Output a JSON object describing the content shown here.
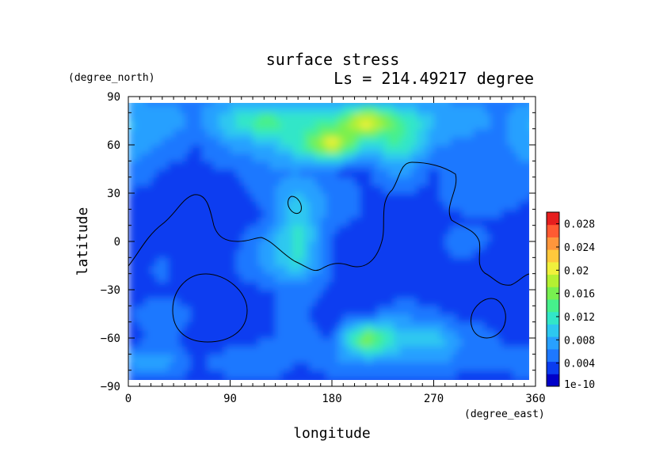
{
  "chart_data": {
    "type": "heatmap",
    "title": "surface stress",
    "subtitle": "Ls = 214.49217 degree",
    "xlabel": "longitude",
    "ylabel": "latitude",
    "x_units": "(degree_east)",
    "y_units": "(degree_north)",
    "xlim": [
      0,
      360
    ],
    "ylim": [
      -90,
      90
    ],
    "x_ticks": [
      "0",
      "90",
      "180",
      "270",
      "360"
    ],
    "y_ticks": [
      "90",
      "60",
      "30",
      "0",
      "−30",
      "−60",
      "−90"
    ],
    "colorbar": {
      "min_label": "1e-10",
      "tick_labels": [
        "0.004",
        "0.008",
        "0.012",
        "0.016",
        "0.02",
        "0.024",
        "0.028"
      ],
      "range": [
        0,
        0.03
      ],
      "colors": [
        "#0000c8",
        "#0a3cf0",
        "#1e78ff",
        "#28a0ff",
        "#2dc8f0",
        "#32e6c8",
        "#46f08c",
        "#78f050",
        "#b4f032",
        "#f0f03c",
        "#ffc83c",
        "#ff963c",
        "#ff5a32",
        "#e61e1e"
      ]
    },
    "grid_lon": [
      0,
      30,
      60,
      90,
      120,
      150,
      180,
      210,
      240,
      270,
      300,
      330,
      360
    ],
    "grid_lat": [
      -90,
      -75,
      -60,
      -45,
      -30,
      -15,
      0,
      15,
      30,
      45,
      60,
      75,
      90
    ],
    "values": [
      [
        0.003,
        0.003,
        0.003,
        0.003,
        0.003,
        0.003,
        0.003,
        0.003,
        0.003,
        0.003,
        0.003,
        0.003,
        0.003
      ],
      [
        0.007,
        0.008,
        0.004,
        0.006,
        0.007,
        0.004,
        0.006,
        0.007,
        0.007,
        0.007,
        0.005,
        0.005,
        0.007
      ],
      [
        0.003,
        0.005,
        0.003,
        0.003,
        0.004,
        0.005,
        0.004,
        0.018,
        0.01,
        0.01,
        0.006,
        0.004,
        0.003
      ],
      [
        0.004,
        0.006,
        0.004,
        0.004,
        0.004,
        0.005,
        0.003,
        0.004,
        0.006,
        0.005,
        0.003,
        0.004,
        0.004
      ],
      [
        0.003,
        0.004,
        0.003,
        0.003,
        0.004,
        0.005,
        0.004,
        0.003,
        0.003,
        0.003,
        0.003,
        0.003,
        0.003
      ],
      [
        0.003,
        0.005,
        0.002,
        0.004,
        0.007,
        0.011,
        0.004,
        0.003,
        0.003,
        0.004,
        0.004,
        0.003,
        0.003
      ],
      [
        0.003,
        0.003,
        0.003,
        0.003,
        0.007,
        0.012,
        0.004,
        0.003,
        0.003,
        0.004,
        0.005,
        0.004,
        0.003
      ],
      [
        0.003,
        0.004,
        0.003,
        0.003,
        0.004,
        0.011,
        0.005,
        0.004,
        0.004,
        0.004,
        0.004,
        0.004,
        0.003
      ],
      [
        0.004,
        0.004,
        0.004,
        0.003,
        0.005,
        0.009,
        0.006,
        0.004,
        0.004,
        0.004,
        0.006,
        0.006,
        0.004
      ],
      [
        0.006,
        0.004,
        0.004,
        0.004,
        0.006,
        0.006,
        0.004,
        0.004,
        0.008,
        0.004,
        0.005,
        0.006,
        0.006
      ],
      [
        0.008,
        0.006,
        0.004,
        0.007,
        0.008,
        0.012,
        0.022,
        0.01,
        0.013,
        0.007,
        0.005,
        0.006,
        0.008
      ],
      [
        0.009,
        0.008,
        0.006,
        0.011,
        0.015,
        0.012,
        0.012,
        0.022,
        0.014,
        0.009,
        0.008,
        0.006,
        0.009
      ],
      [
        0.006,
        0.006,
        0.006,
        0.006,
        0.006,
        0.006,
        0.006,
        0.006,
        0.006,
        0.006,
        0.006,
        0.006,
        0.006
      ]
    ]
  }
}
